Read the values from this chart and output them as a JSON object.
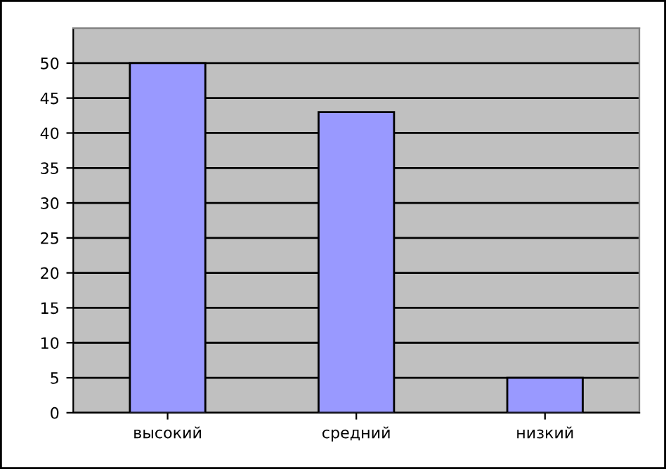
{
  "chart_data": {
    "type": "bar",
    "categories": [
      "высокий",
      "средний",
      "низкий"
    ],
    "values": [
      50,
      43,
      5
    ],
    "color": "#9999ff",
    "ylim": [
      0,
      55
    ],
    "yticks": [
      0,
      5,
      10,
      15,
      20,
      25,
      30,
      35,
      40,
      45,
      50
    ],
    "grid": "y",
    "legend": false
  }
}
